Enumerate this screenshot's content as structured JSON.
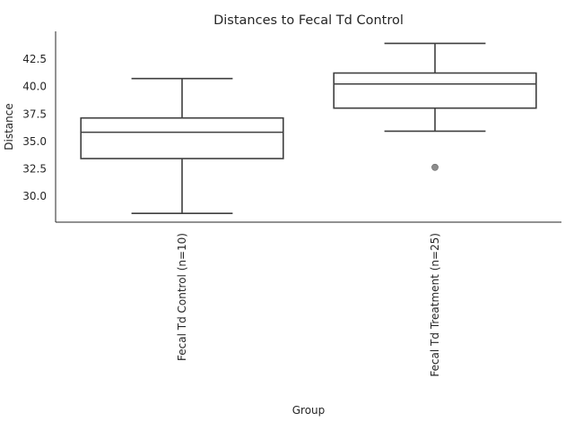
{
  "chart_data": {
    "type": "box",
    "title": "Distances to Fecal Td Control",
    "xlabel": "Group",
    "ylabel": "Distance",
    "ylim": [
      27.6,
      45.0
    ],
    "yticks": [
      30.0,
      32.5,
      35.0,
      37.5,
      40.0,
      42.5
    ],
    "ytick_labels": [
      "30.0",
      "32.5",
      "35.0",
      "37.5",
      "40.0",
      "42.5"
    ],
    "grid": false,
    "categories": [
      "Fecal Td Control (n=10)",
      "Fecal Td Treatment (n=25)"
    ],
    "boxes": [
      {
        "whislo": 28.4,
        "q1": 33.4,
        "med": 35.8,
        "q3": 37.1,
        "whishi": 40.7,
        "fliers": []
      },
      {
        "whislo": 35.9,
        "q1": 38.0,
        "med": 40.2,
        "q3": 41.2,
        "whishi": 43.9,
        "fliers": [
          32.6
        ]
      }
    ]
  }
}
